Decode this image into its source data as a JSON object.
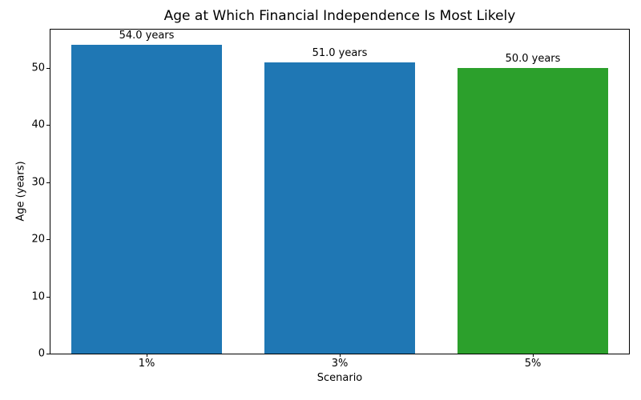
{
  "chart_data": {
    "type": "bar",
    "title": "Age at Which Financial Independence Is Most Likely",
    "xlabel": "Scenario",
    "ylabel": "Age (years)",
    "categories": [
      "1%",
      "3%",
      "5%"
    ],
    "values": [
      54.0,
      51.0,
      50.0
    ],
    "bar_labels": [
      "54.0 years",
      "51.0 years",
      "50.0 years"
    ],
    "bar_colors": [
      "#1f77b4",
      "#1f77b4",
      "#2ca02c"
    ],
    "yticks": [
      0,
      10,
      20,
      30,
      40,
      50
    ],
    "ylim": [
      0,
      56.7
    ],
    "bar_width_fraction": 0.78,
    "grid": false,
    "legend_position": "none"
  }
}
